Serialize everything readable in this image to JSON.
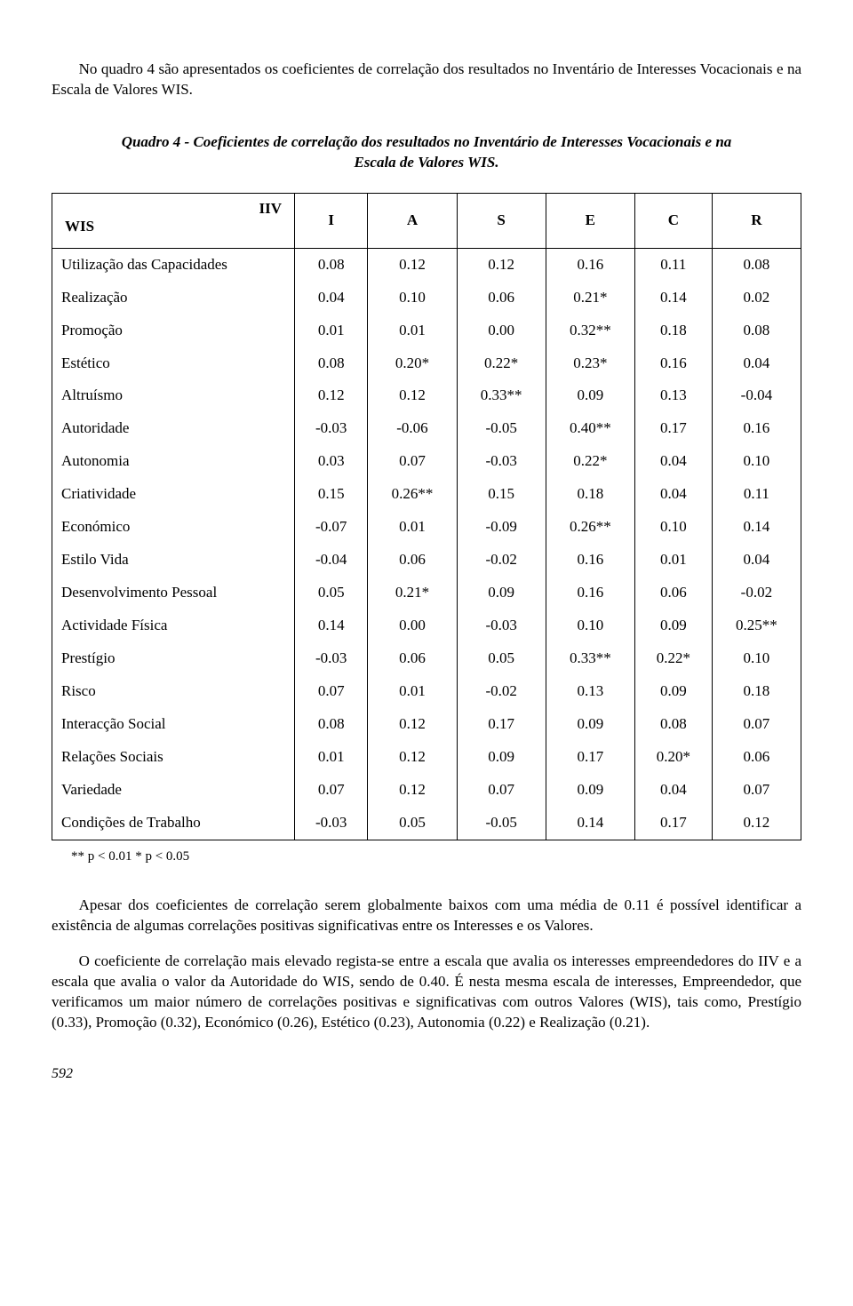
{
  "intro": "No quadro 4 são apresentados os coeficientes de correlação dos resultados no Inventário de Interesses Vocacionais e na Escala de Valores WIS.",
  "table_title": "Quadro 4 - Coeficientes de correlação dos resultados no Inventário de Interesses Vocacionais e na Escala de Valores WIS.",
  "header": {
    "wis": "WIS",
    "iiv": "IIV",
    "cols": [
      "I",
      "A",
      "S",
      "E",
      "C",
      "R"
    ]
  },
  "rows": [
    {
      "label": "Utilização das Capacidades",
      "vals": [
        "0.08",
        "0.12",
        "0.12",
        "0.16",
        "0.11",
        "0.08"
      ]
    },
    {
      "label": "Realização",
      "vals": [
        "0.04",
        "0.10",
        "0.06",
        "0.21*",
        "0.14",
        "0.02"
      ]
    },
    {
      "label": "Promoção",
      "vals": [
        "0.01",
        "0.01",
        "0.00",
        "0.32**",
        "0.18",
        "0.08"
      ]
    },
    {
      "label": "Estético",
      "vals": [
        "0.08",
        "0.20*",
        "0.22*",
        "0.23*",
        "0.16",
        "0.04"
      ]
    },
    {
      "label": "Altruísmo",
      "vals": [
        "0.12",
        "0.12",
        "0.33**",
        "0.09",
        "0.13",
        "-0.04"
      ]
    },
    {
      "label": "Autoridade",
      "vals": [
        "-0.03",
        "-0.06",
        "-0.05",
        "0.40**",
        "0.17",
        "0.16"
      ]
    },
    {
      "label": "Autonomia",
      "vals": [
        "0.03",
        "0.07",
        "-0.03",
        "0.22*",
        "0.04",
        "0.10"
      ]
    },
    {
      "label": "Criatividade",
      "vals": [
        "0.15",
        "0.26**",
        "0.15",
        "0.18",
        "0.04",
        "0.11"
      ]
    },
    {
      "label": "Económico",
      "vals": [
        "-0.07",
        "0.01",
        "-0.09",
        "0.26**",
        "0.10",
        "0.14"
      ]
    },
    {
      "label": "Estilo Vida",
      "vals": [
        "-0.04",
        "0.06",
        "-0.02",
        "0.16",
        "0.01",
        "0.04"
      ]
    },
    {
      "label": "Desenvolvimento Pessoal",
      "vals": [
        "0.05",
        "0.21*",
        "0.09",
        "0.16",
        "0.06",
        "-0.02"
      ]
    },
    {
      "label": "Actividade Física",
      "vals": [
        "0.14",
        "0.00",
        "-0.03",
        "0.10",
        "0.09",
        "0.25**"
      ]
    },
    {
      "label": "Prestígio",
      "vals": [
        "-0.03",
        "0.06",
        "0.05",
        "0.33**",
        "0.22*",
        "0.10"
      ]
    },
    {
      "label": "Risco",
      "vals": [
        "0.07",
        "0.01",
        "-0.02",
        "0.13",
        "0.09",
        "0.18"
      ]
    },
    {
      "label": "Interacção Social",
      "vals": [
        "0.08",
        "0.12",
        "0.17",
        "0.09",
        "0.08",
        "0.07"
      ]
    },
    {
      "label": "Relações Sociais",
      "vals": [
        "0.01",
        "0.12",
        "0.09",
        "0.17",
        "0.20*",
        "0.06"
      ]
    },
    {
      "label": "Variedade",
      "vals": [
        "0.07",
        "0.12",
        "0.07",
        "0.09",
        "0.04",
        "0.07"
      ]
    },
    {
      "label": "Condições de Trabalho",
      "vals": [
        "-0.03",
        "0.05",
        "-0.05",
        "0.14",
        "0.17",
        "0.12"
      ]
    }
  ],
  "footnote": "** p < 0.01   * p < 0.05",
  "para1": "Apesar dos coeficientes de correlação serem globalmente baixos com uma média de 0.11 é possível identificar a existência de algumas correlações positivas significativas entre os Interesses e os Valores.",
  "para2": "O coeficiente de correlação mais elevado regista-se entre a escala que avalia os interesses empreendedores do IIV e a escala que avalia o valor da Autoridade do WIS, sendo de 0.40. É nesta mesma escala de interesses, Empreendedor, que verificamos um maior número de correlações positivas e significativas com outros Valores (WIS), tais como, Prestígio (0.33), Promoção (0.32), Económico (0.26), Estético (0.23), Autonomia (0.22) e Realização (0.21).",
  "page_number": "592"
}
